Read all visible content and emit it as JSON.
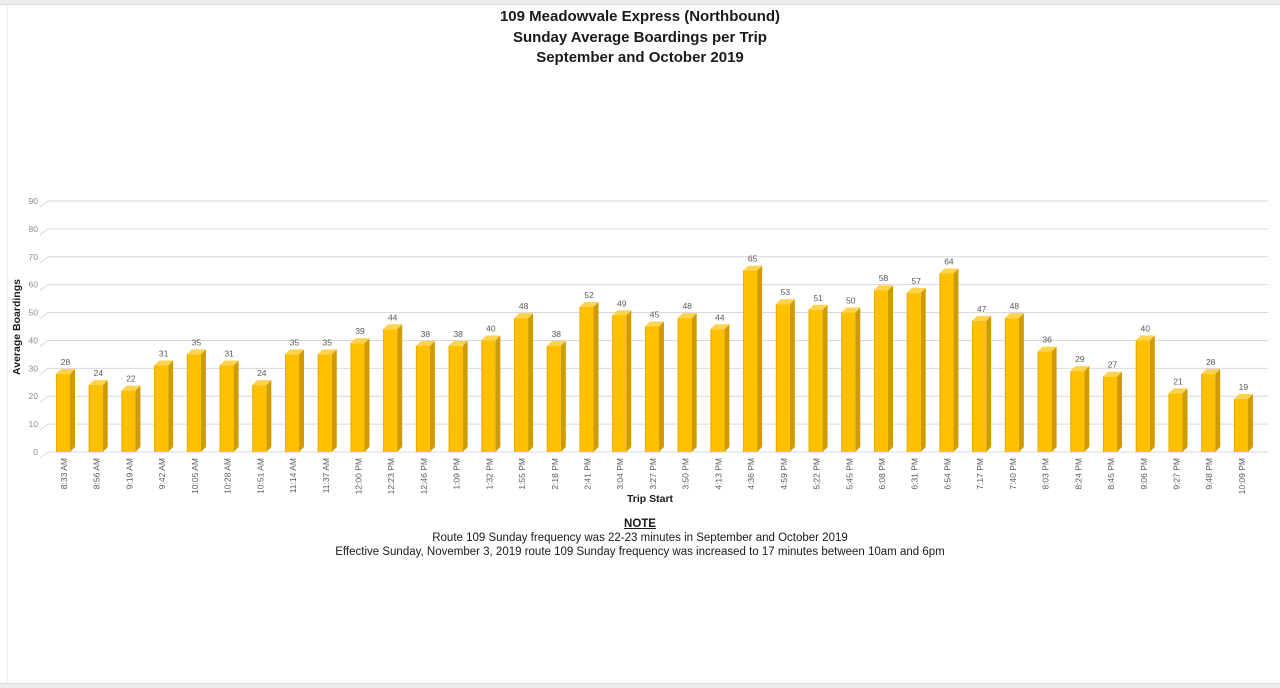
{
  "title": {
    "line1": "109 Meadowvale Express (Northbound)",
    "line2": "Sunday Average Boardings per Trip",
    "line3": "September and October 2019"
  },
  "chart_data": {
    "type": "bar",
    "style": "3d-gold-bars",
    "title": "109 Meadowvale Express (Northbound) Sunday Average Boardings per Trip September and October 2019",
    "title_lines": [
      "109 Meadowvale Express (Northbound)",
      "Sunday Average Boardings per Trip",
      "September and October 2019"
    ],
    "xlabel": "Trip Start",
    "ylabel": "Average Boardings",
    "ylim": [
      0,
      90
    ],
    "ytick_step": 10,
    "yticks": [
      0,
      10,
      20,
      30,
      40,
      50,
      60,
      70,
      80,
      90
    ],
    "grid": true,
    "legend": false,
    "categories": [
      "8:33 AM",
      "8:56 AM",
      "9:19 AM",
      "9:42 AM",
      "10:05 AM",
      "10:28 AM",
      "10:51 AM",
      "11:14 AM",
      "11:37 AM",
      "12:00 PM",
      "12:23 PM",
      "12:46 PM",
      "1:09 PM",
      "1:32 PM",
      "1:55 PM",
      "2:18 PM",
      "2:41 PM",
      "3:04 PM",
      "3:27 PM",
      "3:50 PM",
      "4:13 PM",
      "4:36 PM",
      "4:59 PM",
      "5:22 PM",
      "5:45 PM",
      "6:08 PM",
      "6:31 PM",
      "6:54 PM",
      "7:17 PM",
      "7:40 PM",
      "8:03 PM",
      "8:24 PM",
      "8:45 PM",
      "9:06 PM",
      "9:27 PM",
      "9:48 PM",
      "10:09 PM"
    ],
    "values": [
      28,
      24,
      22,
      31,
      35,
      31,
      24,
      35,
      35,
      39,
      44,
      38,
      38,
      40,
      48,
      38,
      52,
      49,
      45,
      48,
      44,
      65,
      53,
      51,
      50,
      58,
      57,
      64,
      47,
      48,
      36,
      29,
      27,
      40,
      21,
      28,
      19
    ],
    "colors": {
      "bar": "#FFC000",
      "bar_top": "#FFD34D",
      "bar_side": "#D09B00",
      "bar_edge": "#E8AA00",
      "gridline": "#D9D9D9",
      "axis_text": "#8C8C8C",
      "value_label": "#595959",
      "axis_title": "#1A1A1A"
    }
  },
  "note": {
    "heading": "NOTE",
    "line1": "Route 109 Sunday frequency was 22-23 minutes in September and October 2019",
    "line2": "Effective Sunday, November 3, 2019  route 109 Sunday frequency was increased to 17 minutes between 10am and 6pm"
  }
}
